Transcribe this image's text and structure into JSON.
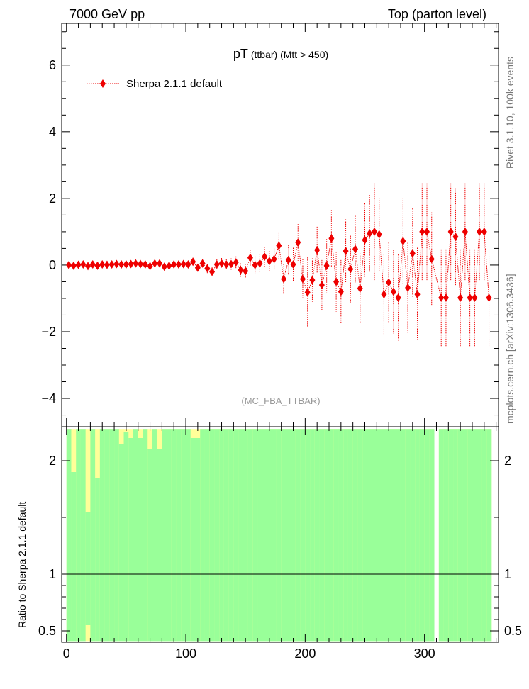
{
  "header": {
    "left": "7000 GeV pp",
    "right": "Top (parton level)"
  },
  "side_labels": {
    "rivet": "Rivet 3.1.10,  100k events",
    "mcplots": "mcplots.cern.ch [arXiv:1306.3436]"
  },
  "chart_data": {
    "type": "scatter",
    "title_main": "pT",
    "title_sub": "(ttbar) (Mtt > 450)",
    "analysis_label": "(MC_FBA_TTBAR)",
    "xlim": [
      -4,
      362
    ],
    "ylim": [
      -4.85,
      7.25
    ],
    "yticks": [
      -4,
      -2,
      0,
      2,
      4,
      6
    ],
    "ytick_labels": [
      "−4",
      "−2",
      "0",
      "2",
      "4",
      "6"
    ],
    "xticks": [
      0,
      100,
      200,
      300
    ],
    "xtick_labels": [
      "0",
      "100",
      "200",
      "300"
    ],
    "series": [
      {
        "name": "Sherpa 2.1.1 default",
        "color": "#ee0000",
        "x": [
          2,
          6,
          10,
          14,
          18,
          22,
          26,
          30,
          34,
          38,
          42,
          46,
          50,
          54,
          58,
          62,
          66,
          70,
          74,
          78,
          82,
          86,
          90,
          94,
          98,
          102,
          106,
          110,
          114,
          118,
          122,
          126,
          130,
          134,
          138,
          142,
          146,
          150,
          154,
          158,
          162,
          166,
          170,
          174,
          178,
          182,
          186,
          190,
          194,
          198,
          202,
          206,
          210,
          214,
          218,
          222,
          226,
          230,
          234,
          238,
          242,
          246,
          250,
          254,
          258,
          262,
          266,
          270,
          274,
          278,
          282,
          286,
          290,
          294,
          298,
          302,
          306,
          310,
          314,
          318,
          322,
          326,
          330,
          334,
          338,
          342,
          346,
          350,
          354
        ],
        "y": [
          0,
          -0.02,
          0.01,
          0.02,
          -0.03,
          0.02,
          -0.02,
          0.02,
          0.01,
          0.02,
          0.03,
          0.02,
          0.02,
          0.03,
          0.05,
          0.03,
          0.02,
          -0.03,
          0.05,
          0.05,
          -0.05,
          -0.02,
          0.02,
          0.02,
          0.03,
          0.02,
          0.1,
          -0.08,
          0.05,
          -0.1,
          -0.2,
          0.02,
          0.05,
          0.02,
          0.03,
          0.08,
          -0.15,
          -0.18,
          0.22,
          0,
          0.05,
          0.25,
          0.12,
          0.18,
          0.58,
          -0.42,
          0.15,
          0.02,
          0.68,
          -0.42,
          -0.82,
          -0.45,
          0.45,
          -0.6,
          -0.02,
          0.8,
          -0.5,
          -0.8,
          0.42,
          -0.12,
          0.48,
          -0.7,
          0.75,
          0.95,
          1.0,
          0.92,
          -0.88,
          -0.52,
          -0.8,
          -0.98,
          0.72,
          -0.68,
          0.35,
          -0.88,
          1.0,
          1.0,
          0.18,
          null,
          -0.98,
          -0.98,
          1.0,
          0.85,
          -0.98,
          1.0,
          -0.98,
          -0.98,
          1.0,
          1.0,
          -0.98
        ],
        "yerr": [
          0.06,
          0.06,
          0.06,
          0.06,
          0.06,
          0.06,
          0.06,
          0.06,
          0.06,
          0.06,
          0.06,
          0.06,
          0.07,
          0.07,
          0.07,
          0.07,
          0.07,
          0.08,
          0.08,
          0.08,
          0.09,
          0.09,
          0.1,
          0.1,
          0.1,
          0.1,
          0.12,
          0.12,
          0.13,
          0.14,
          0.15,
          0.15,
          0.16,
          0.16,
          0.17,
          0.18,
          0.2,
          0.22,
          0.24,
          0.26,
          0.28,
          0.3,
          0.3,
          0.32,
          0.4,
          0.45,
          0.45,
          0.5,
          0.55,
          0.6,
          1.05,
          0.65,
          0.7,
          0.75,
          0.8,
          0.85,
          0.9,
          0.95,
          0.95,
          1.0,
          1.0,
          1.05,
          1.1,
          1.15,
          1.45,
          1.1,
          1.2,
          1.2,
          1.25,
          1.3,
          1.3,
          1.35,
          1.35,
          1.4,
          1.45,
          1.45,
          1.4,
          0,
          1.45,
          1.45,
          1.45,
          1.45,
          1.45,
          1.45,
          1.45,
          1.45,
          1.45,
          1.45,
          1.45
        ]
      }
    ],
    "ratio": {
      "ylabel": "Ratio to Sherpa 2.1.1 default",
      "ylim": [
        0.4,
        2.3
      ],
      "yticks": [
        0.5,
        1,
        2
      ],
      "ytick_labels": [
        "0.5",
        "1",
        "2"
      ],
      "reference_line": 1,
      "bin_width": 4,
      "band_colors": {
        "outer": "#ffff99",
        "inner": "#99ff99"
      },
      "band_hi": [
        2.3,
        2.3,
        2.3,
        2.3,
        2.3,
        2.3,
        2.3,
        2.3,
        2.3,
        2.3,
        2.3,
        2.3,
        2.3,
        2.3,
        2.3,
        2.3,
        2.3,
        2.3,
        2.3,
        2.3,
        2.3,
        2.3,
        2.3,
        2.3,
        2.3,
        2.3,
        2.3,
        2.3,
        2.3,
        2.3,
        2.3,
        2.3,
        2.3,
        2.3,
        2.3,
        2.3,
        2.3,
        2.3,
        2.3,
        2.3,
        2.3,
        2.3,
        2.3,
        2.3,
        2.3,
        2.3,
        2.3,
        2.3,
        2.3,
        2.3,
        2.3,
        2.3,
        2.3,
        2.3,
        2.3,
        2.3,
        2.3,
        2.3,
        2.3,
        2.3,
        2.3,
        2.3,
        2.3,
        2.3,
        2.3,
        2.3,
        2.3,
        2.3,
        2.3,
        2.3,
        2.3,
        2.3,
        2.3,
        2.3,
        2.3,
        2.3,
        2.3,
        null,
        2.3,
        2.3,
        2.3,
        2.3,
        2.3,
        2.3,
        2.3,
        2.3,
        2.3,
        2.3,
        2.3
      ],
      "band_inner_hi": [
        2.3,
        1.9,
        2.3,
        2.3,
        1.55,
        2.3,
        1.85,
        2.3,
        2.3,
        2.3,
        2.3,
        2.15,
        2.25,
        2.2,
        2.3,
        2.2,
        2.3,
        2.1,
        2.3,
        2.1,
        2.3,
        2.3,
        2.3,
        2.3,
        2.3,
        2.3,
        2.2,
        2.2,
        2.3,
        2.3,
        2.3,
        2.3,
        2.3,
        2.3,
        2.3,
        2.3,
        2.3,
        2.3,
        2.3,
        2.3,
        2.3,
        2.3,
        2.3,
        2.3,
        2.3,
        2.3,
        2.3,
        2.3,
        2.3,
        2.3,
        2.3,
        2.3,
        2.3,
        2.3,
        2.3,
        2.3,
        2.3,
        2.3,
        2.3,
        2.3,
        2.3,
        2.3,
        2.3,
        2.3,
        2.3,
        2.3,
        2.3,
        2.3,
        2.3,
        2.3,
        2.3,
        2.3,
        2.3,
        2.3,
        2.3,
        2.3,
        2.3,
        null,
        2.3,
        2.3,
        2.3,
        2.3,
        2.3,
        2.3,
        2.3,
        2.3,
        2.3,
        2.3,
        2.3
      ],
      "band_inner_lo": [
        0.4,
        0.4,
        0.4,
        0.4,
        0.55,
        0.4,
        0.4,
        0.4,
        0.4,
        0.4,
        0.4,
        0.4,
        0.4,
        0.4,
        0.4,
        0.4,
        0.4,
        0.4,
        0.4,
        0.4,
        0.4,
        0.4,
        0.4,
        0.4,
        0.4,
        0.4,
        0.4,
        0.4,
        0.4,
        0.4,
        0.4,
        0.4,
        0.4,
        0.4,
        0.4,
        0.4,
        0.4,
        0.4,
        0.4,
        0.4,
        0.4,
        0.4,
        0.4,
        0.4,
        0.4,
        0.4,
        0.4,
        0.4,
        0.4,
        0.4,
        0.4,
        0.4,
        0.4,
        0.4,
        0.4,
        0.4,
        0.4,
        0.4,
        0.4,
        0.4,
        0.4,
        0.4,
        0.4,
        0.4,
        0.4,
        0.4,
        0.4,
        0.4,
        0.4,
        0.4,
        0.4,
        0.4,
        0.4,
        0.4,
        0.4,
        0.4,
        0.4,
        null,
        0.4,
        0.4,
        0.4,
        0.4,
        0.4,
        0.4,
        0.4,
        0.4,
        0.4,
        0.4,
        0.4
      ],
      "band_inner_top_extra": [
        0,
        0,
        0,
        0,
        0,
        0,
        0,
        0,
        0,
        0,
        0,
        0,
        0,
        0,
        0,
        0,
        0,
        0,
        0,
        0,
        0,
        0,
        0,
        0,
        0,
        0,
        0,
        0,
        0,
        0,
        0,
        0,
        0,
        0,
        0,
        0,
        0,
        0,
        0,
        0,
        0,
        0,
        0,
        0,
        0,
        0,
        0,
        0,
        0,
        0,
        0,
        0,
        0,
        0,
        0,
        0,
        0,
        0,
        0,
        0,
        0,
        0,
        0,
        0,
        0,
        0,
        0,
        0,
        0,
        0,
        0,
        0,
        0,
        0,
        0,
        0,
        0,
        0,
        0,
        0,
        0,
        0,
        0,
        0,
        0,
        0,
        0,
        0,
        0
      ]
    }
  }
}
